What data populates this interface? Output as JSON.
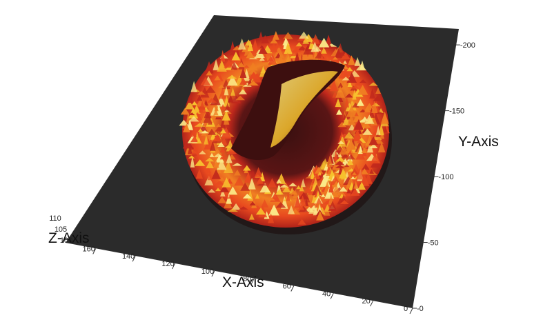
{
  "chart_data": {
    "type": "surface3d",
    "title": "",
    "xlabel": "X-Axis",
    "ylabel": "Y-Axis",
    "zlabel": "Z-Axis",
    "x_ticks": [
      "0",
      "20",
      "40",
      "60",
      "80",
      "100",
      "120",
      "140",
      "160"
    ],
    "y_ticks": [
      "0",
      "50",
      "100",
      "150",
      "200"
    ],
    "z_ticks": [
      "100",
      "105",
      "110"
    ],
    "xlim": [
      0,
      170
    ],
    "ylim": [
      0,
      210
    ],
    "zlim": [
      100,
      110
    ],
    "surface": {
      "shape": "ring with inner trench",
      "center": [
        85,
        110
      ],
      "outer_radius": 70,
      "inner_radius": 35,
      "base_value": 100,
      "peak_value": 110
    },
    "colormap": [
      "#6b1a1a",
      "#c0281c",
      "#e8491f",
      "#f07f22",
      "#f7c12e",
      "#fbeb8a"
    ],
    "floor_color": "#2b2b2b"
  }
}
